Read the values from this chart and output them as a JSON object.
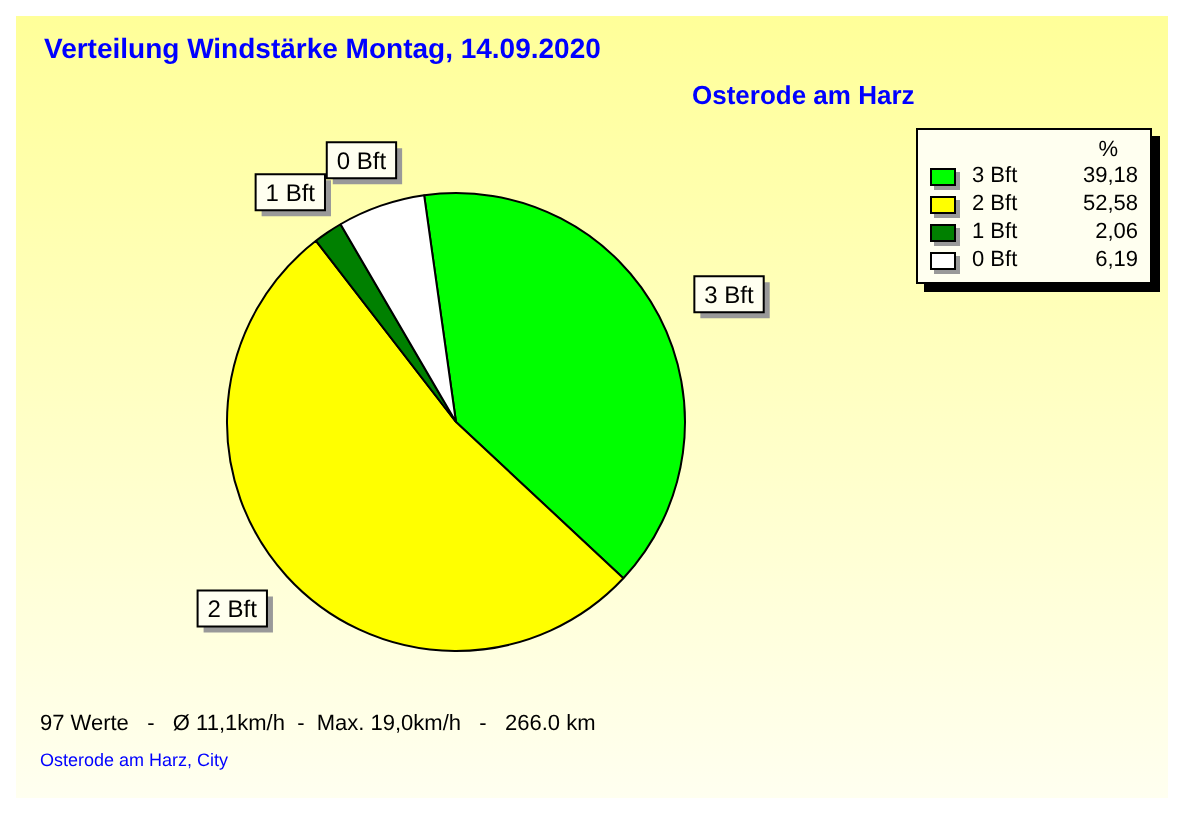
{
  "chart_data": {
    "type": "pie",
    "title": "Verteilung Windstärke  Montag, 14.09.2020",
    "subtitle": "Osterode am Harz",
    "legend_title": "%",
    "categories": [
      "3 Bft",
      "2 Bft",
      "1 Bft",
      "0 Bft"
    ],
    "values": [
      39.18,
      52.58,
      2.06,
      6.19
    ],
    "value_labels": [
      "39,18",
      "52,58",
      "2,06",
      "6,19"
    ],
    "colors": [
      "#00ff00",
      "#ffff00",
      "#008000",
      "#ffffff"
    ],
    "legend": "top right",
    "annotations": [
      "97 Werte   -   Ø 11,1km/h  -  Max. 19,0km/h   -   266.0 km",
      "Osterode am Harz, City"
    ]
  }
}
